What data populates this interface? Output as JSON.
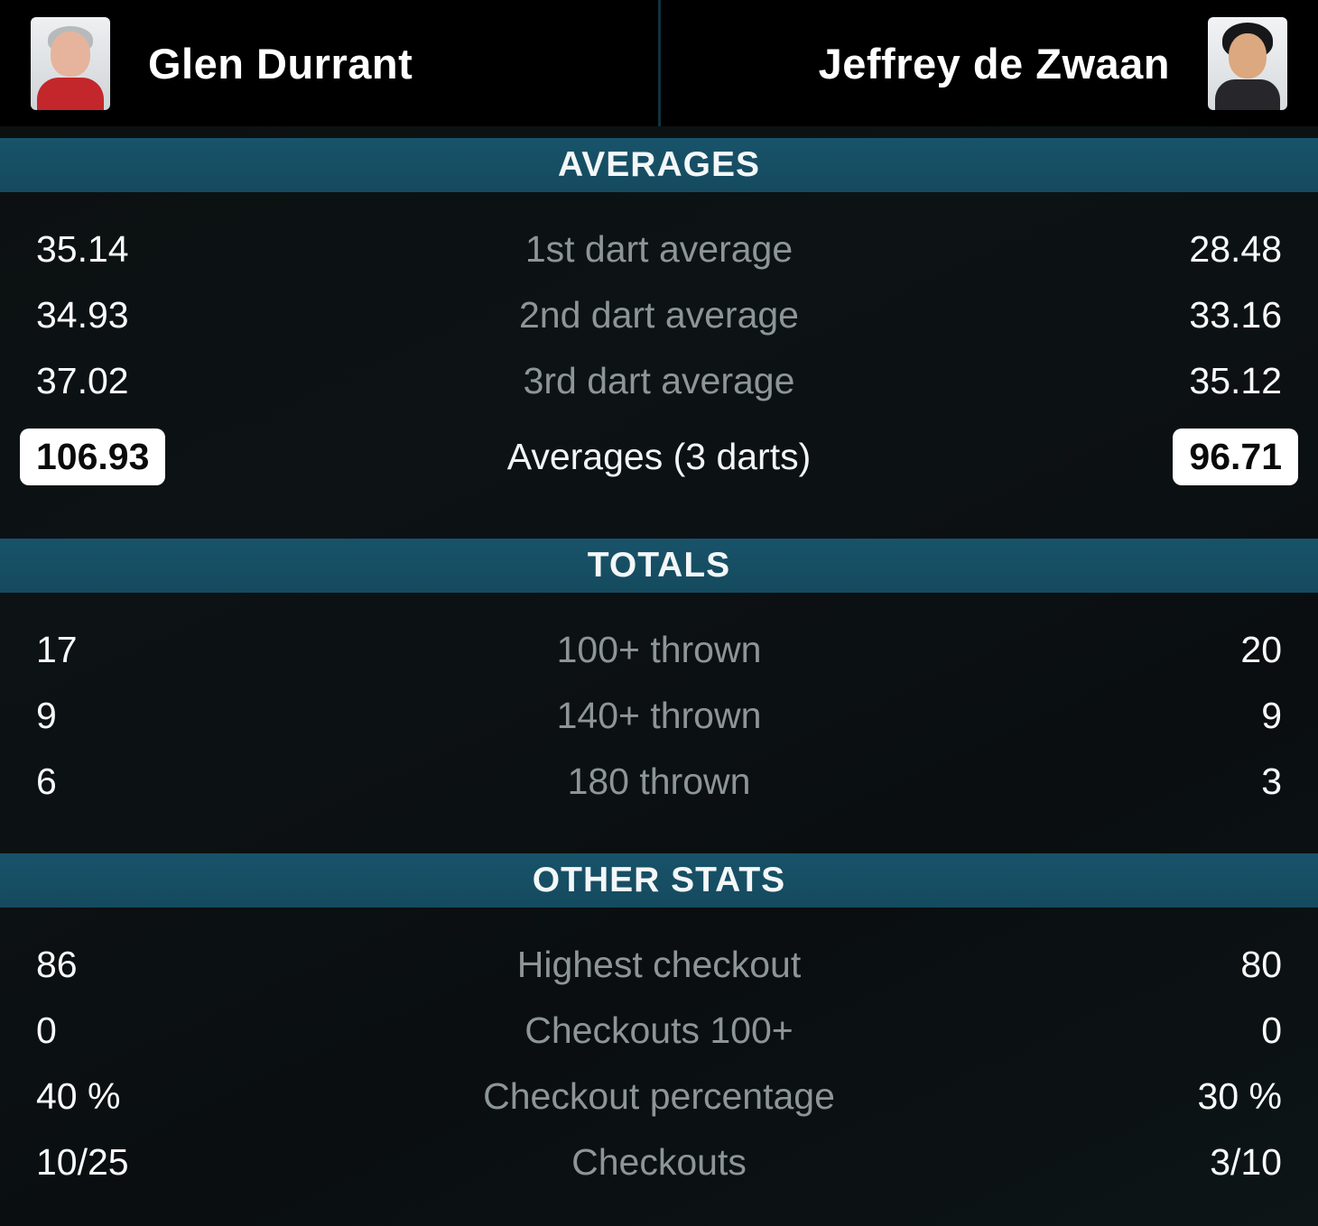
{
  "header": {
    "left_player": {
      "name": "Glen Durrant"
    },
    "right_player": {
      "name": "Jeffrey de Zwaan"
    }
  },
  "sections": [
    {
      "title": "AVERAGES",
      "rows": [
        {
          "left": "35.14",
          "label": "1st dart average",
          "right": "28.48"
        },
        {
          "left": "34.93",
          "label": "2nd dart average",
          "right": "33.16"
        },
        {
          "left": "37.02",
          "label": "3rd dart average",
          "right": "35.12"
        },
        {
          "left": "106.93",
          "label": "Averages (3 darts)",
          "right": "96.71",
          "highlight": true
        }
      ]
    },
    {
      "title": "TOTALS",
      "rows": [
        {
          "left": "17",
          "label": "100+ thrown",
          "right": "20"
        },
        {
          "left": "9",
          "label": "140+ thrown",
          "right": "9"
        },
        {
          "left": "6",
          "label": "180 thrown",
          "right": "3"
        }
      ]
    },
    {
      "title": "OTHER STATS",
      "rows": [
        {
          "left": "86",
          "label": "Highest checkout",
          "right": "80"
        },
        {
          "left": "0",
          "label": "Checkouts 100+",
          "right": "0"
        },
        {
          "left": "40 %",
          "label": "Checkout percentage",
          "right": "30 %"
        },
        {
          "left": "10/25",
          "label": "Checkouts",
          "right": "3/10"
        }
      ]
    }
  ],
  "colors": {
    "section_header_bg": "#164e63",
    "label_gray": "#8d9598",
    "value_white": "#f8fafa",
    "pill_bg": "#ffffff",
    "pill_text": "#0a0a0a",
    "header_bg": "#000000",
    "page_bg": "#0c1113"
  }
}
